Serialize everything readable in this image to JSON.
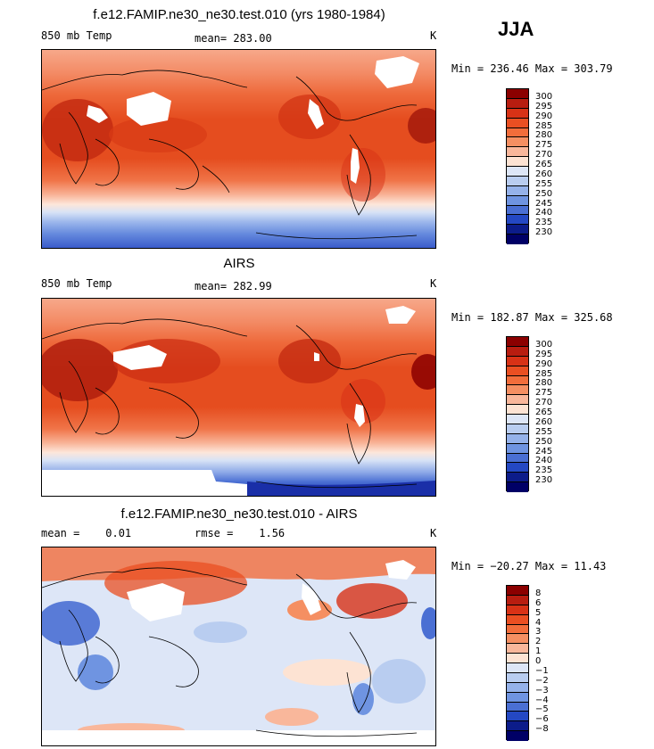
{
  "season": "JJA",
  "units": "K",
  "panels": [
    {
      "id": "model",
      "title": "f.e12.FAMIP.ne30_ne30.test.010 (yrs 1980-1984)",
      "left_label": "850 mb Temp",
      "mid_label": "mean= 283.00",
      "right_label": "K",
      "minmax": "Min = 236.46  Max = 303.79",
      "colorbar_labels": [
        "300",
        "295",
        "290",
        "285",
        "280",
        "275",
        "270",
        "265",
        "260",
        "255",
        "250",
        "245",
        "240",
        "235",
        "230"
      ],
      "colorbar_colors": [
        "#8b0000",
        "#b81d10",
        "#d83216",
        "#ea4f22",
        "#f26d3b",
        "#f58f62",
        "#f9b79b",
        "#fde3d3",
        "#dde6f7",
        "#b9cdf0",
        "#95b2ea",
        "#6f94e1",
        "#4a6fd3",
        "#2448c3",
        "#0c1c8a",
        "#000066"
      ]
    },
    {
      "id": "obs",
      "title": "AIRS",
      "left_label": "850 mb Temp",
      "mid_label": "mean= 282.99",
      "right_label": "K",
      "minmax": "Min = 182.87  Max = 325.68",
      "colorbar_labels": [
        "300",
        "295",
        "290",
        "285",
        "280",
        "275",
        "270",
        "265",
        "260",
        "255",
        "250",
        "245",
        "240",
        "235",
        "230"
      ],
      "colorbar_colors": [
        "#8b0000",
        "#b81d10",
        "#d83216",
        "#ea4f22",
        "#f26d3b",
        "#f58f62",
        "#f9b79b",
        "#fde3d3",
        "#dde6f7",
        "#b9cdf0",
        "#95b2ea",
        "#6f94e1",
        "#4a6fd3",
        "#2448c3",
        "#0c1c8a",
        "#000066"
      ]
    },
    {
      "id": "diff",
      "title": "f.e12.FAMIP.ne30_ne30.test.010 - AIRS",
      "left_label": "mean =    0.01",
      "mid_label": "rmse =    1.56",
      "right_label": "K",
      "minmax": "Min = −20.27  Max =  11.43",
      "colorbar_labels": [
        "8",
        "6",
        "5",
        "4",
        "3",
        "2",
        "1",
        "0",
        "−1",
        "−2",
        "−3",
        "−4",
        "−5",
        "−6",
        "−8"
      ],
      "colorbar_colors": [
        "#8b0000",
        "#b81d10",
        "#d83216",
        "#ea4f22",
        "#f26d3b",
        "#f58f62",
        "#f9b79b",
        "#fde3d3",
        "#dde6f7",
        "#b9cdf0",
        "#95b2ea",
        "#6f94e1",
        "#4a6fd3",
        "#2448c3",
        "#0c1c8a",
        "#000066"
      ]
    }
  ],
  "chart_data": [
    {
      "type": "heatmap",
      "title": "f.e12.FAMIP.ne30_ne30.test.010 (yrs 1980-1984)",
      "variable": "850 mb Temp",
      "units": "K",
      "mean": 283.0,
      "min": 236.46,
      "max": 303.79,
      "contour_levels": [
        230,
        235,
        240,
        245,
        250,
        255,
        260,
        265,
        270,
        275,
        280,
        285,
        290,
        295,
        300
      ]
    },
    {
      "type": "heatmap",
      "title": "AIRS",
      "variable": "850 mb Temp",
      "units": "K",
      "mean": 282.99,
      "min": 182.87,
      "max": 325.68,
      "contour_levels": [
        230,
        235,
        240,
        245,
        250,
        255,
        260,
        265,
        270,
        275,
        280,
        285,
        290,
        295,
        300
      ]
    },
    {
      "type": "heatmap",
      "title": "f.e12.FAMIP.ne30_ne30.test.010 - AIRS",
      "units": "K",
      "mean": 0.01,
      "rmse": 1.56,
      "min": -20.27,
      "max": 11.43,
      "contour_levels": [
        -8,
        -6,
        -5,
        -4,
        -3,
        -2,
        -1,
        0,
        1,
        2,
        3,
        4,
        5,
        6,
        8
      ]
    }
  ]
}
